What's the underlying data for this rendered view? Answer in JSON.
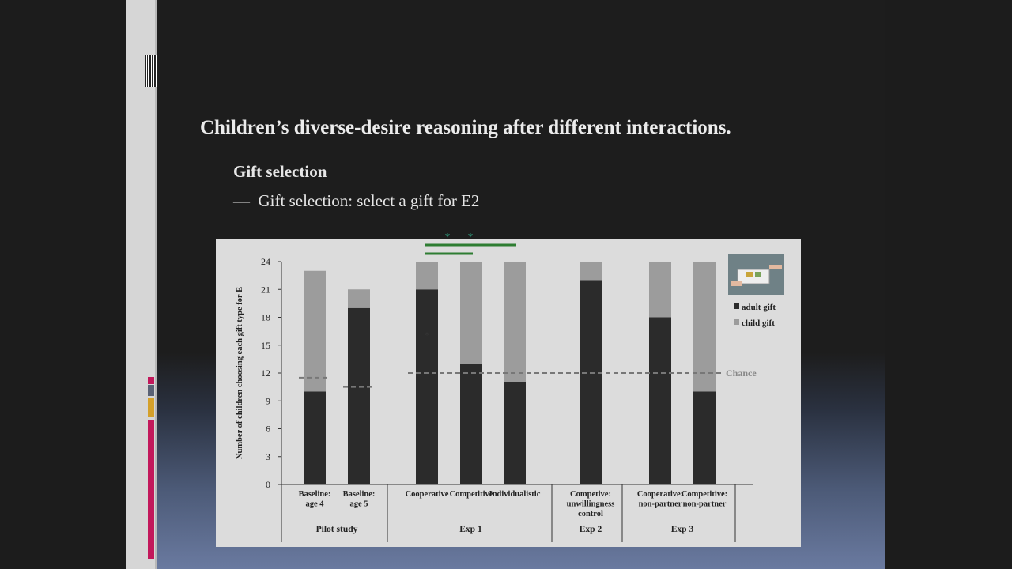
{
  "slide": {
    "title": "Children’s diverse-desire reasoning after different interactions.",
    "section_heading": "Gift selection",
    "bullet_dash": "—",
    "bullet_text": "Gift selection: select a gift for E2"
  },
  "colors": {
    "adult_gift": "#2b2b2b",
    "child_gift": "#9c9c9c",
    "significance": "#2e7d32",
    "accent_strip": [
      "#c2185b",
      "#5a6275",
      "#d4a02a",
      "#c2185b"
    ]
  },
  "chart_data": {
    "type": "bar",
    "stacked": true,
    "title": "",
    "ylabel": "Number of children choosing each gift type for E",
    "ylim": [
      0,
      24
    ],
    "yticks": [
      0,
      3,
      6,
      9,
      12,
      15,
      18,
      21,
      24
    ],
    "categories": [
      [
        "Baseline:",
        "age 4"
      ],
      [
        "Baseline:",
        "age 5"
      ],
      [
        "Cooperative"
      ],
      [
        "Competitive"
      ],
      [
        "Individualistic"
      ],
      [
        "Competive:",
        "unwillingness",
        "control"
      ],
      [
        "Cooperative:",
        "non-partner"
      ],
      [
        "Competitive:",
        "non-partner"
      ]
    ],
    "groups": [
      {
        "label": "Pilot study",
        "members": [
          0,
          1
        ]
      },
      {
        "label": "Exp 1",
        "members": [
          2,
          3,
          4
        ]
      },
      {
        "label": "Exp 2",
        "members": [
          5
        ]
      },
      {
        "label": "Exp 3",
        "members": [
          6,
          7
        ]
      }
    ],
    "series": [
      {
        "name": "adult gift",
        "values": [
          10,
          19,
          21,
          13,
          11,
          22,
          18,
          10
        ]
      },
      {
        "name": "child gift",
        "values": [
          13,
          2,
          3,
          11,
          13,
          2,
          6,
          14
        ]
      }
    ],
    "reference_lines": [
      {
        "label": "Chance",
        "value": 12
      },
      {
        "label": "",
        "value": 11.5,
        "span": [
          0
        ]
      },
      {
        "label": "",
        "value": 10.5,
        "span": [
          1
        ]
      }
    ],
    "significance": [
      {
        "from": 2,
        "to": 4,
        "label": "*"
      },
      {
        "from": 2,
        "to": 3,
        "label": "*"
      }
    ],
    "legend": {
      "position": "top-right",
      "has_photo": true
    },
    "grid": false
  }
}
